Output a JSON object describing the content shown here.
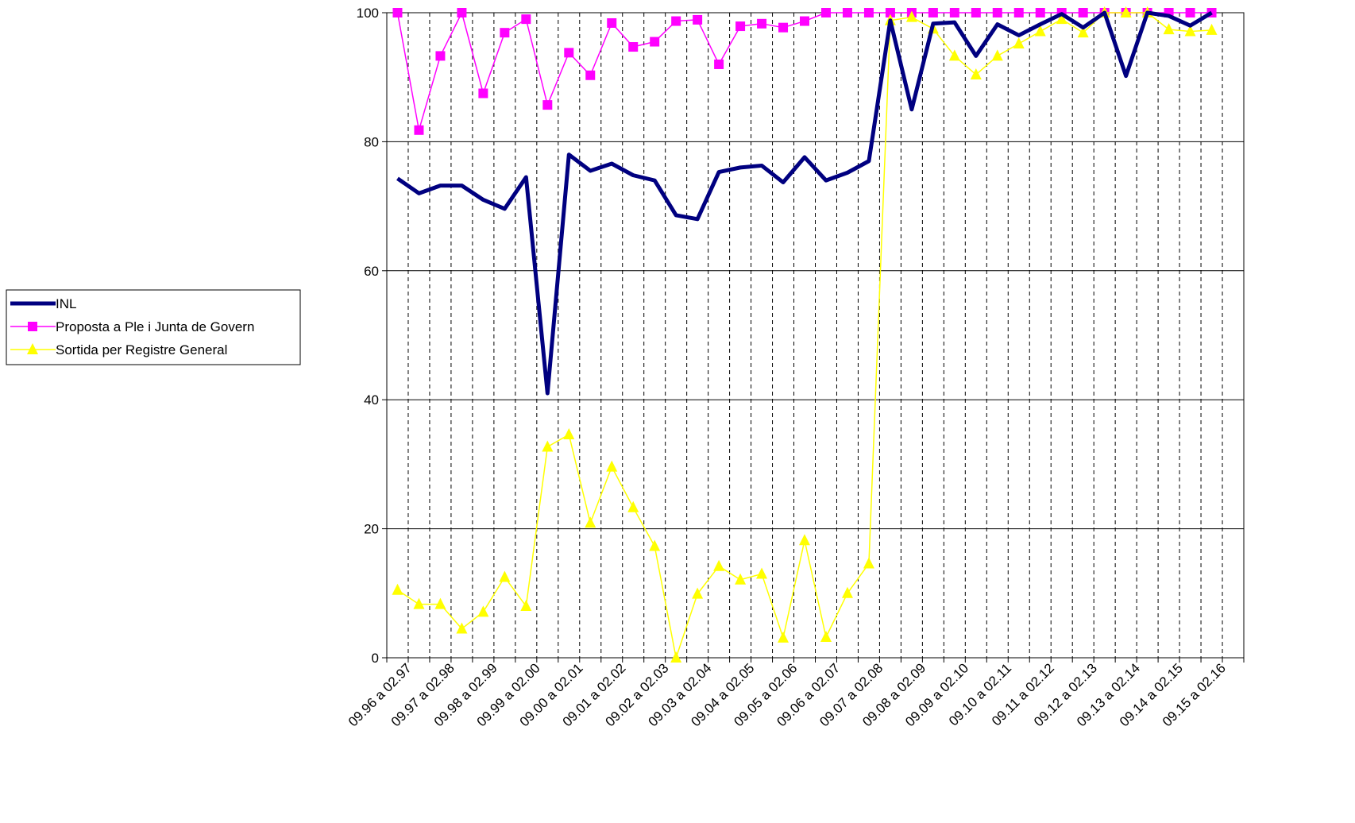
{
  "chart_data": {
    "type": "line",
    "title": "",
    "xlabel": "",
    "ylabel": "",
    "ylim": [
      0,
      100
    ],
    "yticks": [
      0,
      20,
      40,
      60,
      80,
      100
    ],
    "grid": {
      "horizontal": true,
      "vertical": "dashed"
    },
    "legend_position": "left",
    "category_labels": [
      "09.96 a 02.97",
      "09.97 a 02.98",
      "09.98 a 02.99",
      "09.99 a 02.00",
      "09.00 a 02.01",
      "09.01 a 02.02",
      "09.02 a 02.03",
      "09.03 a 02.04",
      "09.04 a 02.05",
      "09.05 a 02.06",
      "09.06 a 02.07",
      "09.07 a 02.08",
      "09.08 a 02.09",
      "09.09 a 02.10",
      "09.10 a 02.11",
      "09.11 a 02.12",
      "09.12 a 02.13",
      "09.13 a 02.14",
      "09.14 a 02.15",
      "09.15 a 02.16"
    ],
    "points_per_category": 2,
    "series": [
      {
        "name": "INL",
        "color": "#000080",
        "marker": "none",
        "values": [
          74.3,
          72,
          73.2,
          73.2,
          71,
          69.6,
          74.5,
          41,
          78,
          75.5,
          76.6,
          74.8,
          74,
          68.6,
          68,
          75.3,
          76,
          76.3,
          73.7,
          77.6,
          74,
          75.2,
          77,
          98.8,
          85,
          98.3,
          98.5,
          93.3,
          98.2,
          96.5,
          98.2,
          99.8,
          97.7,
          100,
          90.2,
          100,
          99.5,
          98,
          100
        ]
      },
      {
        "name": "Proposta a Ple i Junta de Govern",
        "color": "#ff00ff",
        "marker": "square",
        "values": [
          100,
          81.8,
          93.3,
          100,
          87.5,
          96.9,
          99,
          85.7,
          93.8,
          90.3,
          98.4,
          94.7,
          95.5,
          98.7,
          98.9,
          92,
          97.9,
          98.3,
          97.7,
          98.7,
          100,
          100,
          100,
          100,
          100,
          100,
          100,
          100,
          100,
          100,
          100,
          100,
          100,
          100,
          100,
          100,
          100,
          100,
          100
        ]
      },
      {
        "name": "Sortida per Registre General",
        "color": "#ffff00",
        "marker": "triangle",
        "values": [
          10.5,
          8.3,
          8.3,
          4.5,
          7.1,
          12.5,
          8,
          32.7,
          34.6,
          20.9,
          29.6,
          23.3,
          17.3,
          0,
          9.9,
          14.2,
          12.1,
          13,
          3.1,
          18.2,
          3.2,
          10,
          14.6,
          98.8,
          99.3,
          97.5,
          93.3,
          90.4,
          93.3,
          95.2,
          97.1,
          99,
          96.9,
          100,
          100,
          100,
          97.4,
          97.1,
          97.3
        ]
      }
    ]
  }
}
